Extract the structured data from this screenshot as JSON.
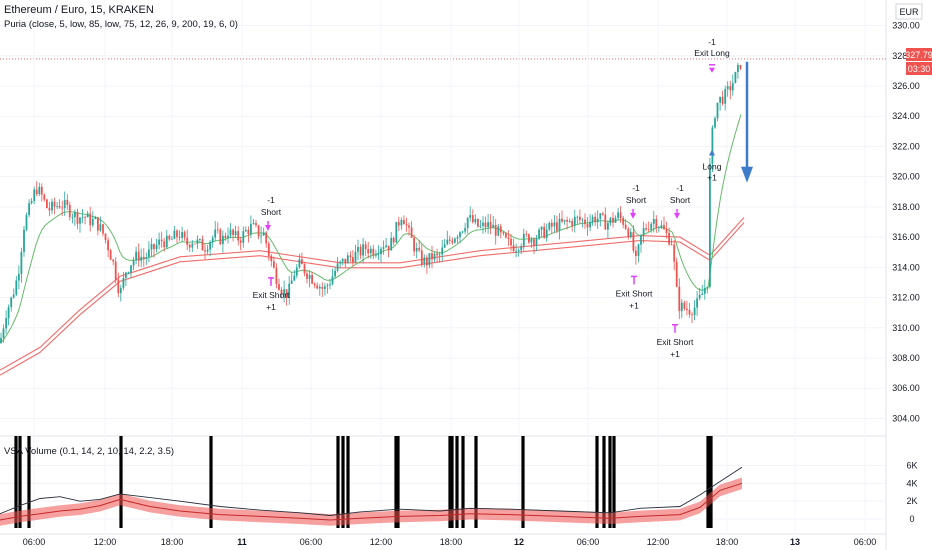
{
  "header": {
    "symbol": "Ethereum / Euro, 15, KRAKEN",
    "indicator": "Puria (close, 5, low, 85, low, 75, 12, 26, 9, 200, 19, 6, 0)"
  },
  "volume_pane": {
    "label": "VSA Volume (0.1, 14, 2, 10, 14, 2.2, 3.5)"
  },
  "price_axis": {
    "currency": "EUR",
    "last_price": "327.79",
    "countdown": "03:30"
  },
  "colors": {
    "up": "#26a69a",
    "down": "#ef5350",
    "ma": "#ef5350",
    "ma_fast": "#66bb6a",
    "signal": "#e040fb",
    "forecast": "#3d7cc9",
    "vol_line": "#2a2e39",
    "vol_band": "#ef5350",
    "climax_bar": "#000000"
  },
  "chart_data": [
    {
      "type": "candlestick",
      "title": "Ethereum / Euro, 15, KRAKEN",
      "ylim": [
        303.5,
        330.3
      ],
      "y_ticks": [
        "330.00",
        "328.00",
        "326.00",
        "324.00",
        "322.00",
        "320.00",
        "318.00",
        "316.00",
        "314.00",
        "312.00",
        "310.00",
        "308.00",
        "306.00",
        "304.00"
      ],
      "x_ticks": [
        "06:00",
        "12:00",
        "18:00",
        "11",
        "06:00",
        "12:00",
        "18:00",
        "12",
        "06:00",
        "12:00",
        "18:00",
        "13",
        "06:00"
      ],
      "close_path": [
        [
          0,
          309
        ],
        [
          6,
          311
        ],
        [
          12,
          312
        ],
        [
          18,
          313.5
        ],
        [
          24,
          316.8
        ],
        [
          30,
          318
        ],
        [
          36,
          319.3
        ],
        [
          42,
          318.7
        ],
        [
          48,
          317.8
        ],
        [
          54,
          318
        ],
        [
          60,
          318.2
        ],
        [
          66,
          318
        ],
        [
          72,
          317.6
        ],
        [
          78,
          317.3
        ],
        [
          84,
          317.4
        ],
        [
          90,
          317.1
        ],
        [
          96,
          317
        ],
        [
          102,
          316.4
        ],
        [
          108,
          315.4
        ],
        [
          114,
          314.1
        ],
        [
          120,
          312.2
        ],
        [
          126,
          313.8
        ],
        [
          132,
          314.4
        ],
        [
          138,
          314.8
        ],
        [
          144,
          314.6
        ],
        [
          150,
          315
        ],
        [
          156,
          315.4
        ],
        [
          162,
          315.8
        ],
        [
          168,
          315.6
        ],
        [
          174,
          316
        ],
        [
          180,
          316.2
        ],
        [
          186,
          315.5
        ],
        [
          192,
          315.8
        ],
        [
          198,
          315.6
        ],
        [
          204,
          315.3
        ],
        [
          210,
          315.8
        ],
        [
          216,
          316.2
        ],
        [
          222,
          315.8
        ],
        [
          228,
          316.4
        ],
        [
          234,
          316
        ],
        [
          240,
          315.9
        ],
        [
          246,
          316.4
        ],
        [
          252,
          316.7
        ],
        [
          258,
          316.3
        ],
        [
          264,
          316.2
        ],
        [
          270,
          314.6
        ],
        [
          276,
          313.4
        ],
        [
          282,
          312.5
        ],
        [
          288,
          312.2
        ],
        [
          294,
          313.6
        ],
        [
          300,
          314.2
        ],
        [
          306,
          313.7
        ],
        [
          312,
          313.3
        ],
        [
          318,
          312.9
        ],
        [
          324,
          312.5
        ],
        [
          330,
          313.1
        ],
        [
          336,
          313.9
        ],
        [
          342,
          314.3
        ],
        [
          348,
          314.6
        ],
        [
          354,
          314.8
        ],
        [
          360,
          315
        ],
        [
          366,
          315.3
        ],
        [
          372,
          315.1
        ],
        [
          378,
          315.3
        ],
        [
          384,
          315.6
        ],
        [
          390,
          315.4
        ],
        [
          396,
          316.5
        ],
        [
          402,
          317.6
        ],
        [
          408,
          316.4
        ],
        [
          414,
          315.4
        ],
        [
          420,
          314.6
        ],
        [
          426,
          314.3
        ],
        [
          432,
          314.7
        ],
        [
          438,
          314.6
        ],
        [
          444,
          315.3
        ],
        [
          450,
          315.8
        ],
        [
          456,
          316.2
        ],
        [
          462,
          316.6
        ],
        [
          468,
          317.3
        ],
        [
          474,
          316.9
        ],
        [
          480,
          316.6
        ],
        [
          486,
          316.8
        ],
        [
          492,
          316.7
        ],
        [
          498,
          316.3
        ],
        [
          504,
          315.8
        ],
        [
          510,
          315.5
        ],
        [
          516,
          315.4
        ],
        [
          522,
          315.8
        ],
        [
          528,
          316
        ],
        [
          534,
          315.9
        ],
        [
          540,
          316.2
        ],
        [
          546,
          316.4
        ],
        [
          552,
          316.7
        ],
        [
          558,
          316.8
        ],
        [
          564,
          316.9
        ],
        [
          570,
          317
        ],
        [
          576,
          317.2
        ],
        [
          582,
          317.1
        ],
        [
          588,
          317
        ],
        [
          594,
          317.3
        ],
        [
          600,
          317.2
        ],
        [
          606,
          316.9
        ],
        [
          612,
          317.1
        ],
        [
          618,
          317.4
        ],
        [
          624,
          317
        ],
        [
          630,
          316.2
        ],
        [
          636,
          314.3
        ],
        [
          642,
          316.3
        ],
        [
          648,
          316.8
        ],
        [
          654,
          317.2
        ],
        [
          660,
          316.8
        ],
        [
          666,
          316.2
        ],
        [
          672,
          315.7
        ],
        [
          678,
          311.5
        ],
        [
          684,
          311.3
        ],
        [
          690,
          311.2
        ],
        [
          696,
          311.4
        ],
        [
          702,
          312.2
        ],
        [
          708,
          313.2
        ],
        [
          710,
          321
        ],
        [
          714,
          324
        ],
        [
          718,
          325
        ],
        [
          722,
          325.2
        ],
        [
          726,
          325.4
        ],
        [
          730,
          325.9
        ],
        [
          734,
          326.4
        ],
        [
          738,
          327
        ],
        [
          742,
          327.79
        ]
      ],
      "ma_slow": [
        [
          0,
          307
        ],
        [
          40,
          308.5
        ],
        [
          80,
          311
        ],
        [
          120,
          313.2
        ],
        [
          180,
          314.5
        ],
        [
          260,
          314.9
        ],
        [
          340,
          314.1
        ],
        [
          400,
          314.1
        ],
        [
          480,
          314.9
        ],
        [
          560,
          315.4
        ],
        [
          640,
          315.9
        ],
        [
          680,
          315.8
        ],
        [
          710,
          314.6
        ],
        [
          744,
          317.1
        ]
      ],
      "forecast_arrow": {
        "from": 327.6,
        "to": 319.6
      },
      "annotations": [
        {
          "x": 268,
          "price": 316.8,
          "dir": "short",
          "lines": [
            "-1",
            "Short"
          ]
        },
        {
          "x": 271,
          "price": 313.3,
          "dir": "exit",
          "lines": [
            "Exit Short",
            "+1"
          ]
        },
        {
          "x": 633,
          "price": 317.6,
          "dir": "short",
          "lines": [
            "-1",
            "Short"
          ]
        },
        {
          "x": 634,
          "price": 313.4,
          "dir": "exit",
          "lines": [
            "Exit Short",
            "+1"
          ]
        },
        {
          "x": 677,
          "price": 317.6,
          "dir": "short",
          "lines": [
            "-1",
            "Short"
          ]
        },
        {
          "x": 675,
          "price": 310.2,
          "dir": "exit",
          "lines": [
            "Exit Short",
            "+1"
          ]
        },
        {
          "x": 712,
          "price": 321.4,
          "dir": "long",
          "lines": [
            "Long",
            "+1"
          ]
        },
        {
          "x": 712,
          "price": 327.8,
          "dir": "exit_long",
          "lines": [
            "-1",
            "Exit Long"
          ]
        }
      ]
    },
    {
      "type": "line",
      "title": "VSA Volume (0.1, 14, 2, 10, 14, 2.2, 3.5)",
      "ylim": [
        -1000,
        7500
      ],
      "y_ticks": [
        "6K",
        "4K",
        "2K",
        "0"
      ],
      "series": [
        {
          "values": [
            [
              0,
              600
            ],
            [
              20,
              1500
            ],
            [
              40,
              2300
            ],
            [
              60,
              2500
            ],
            [
              80,
              2000
            ],
            [
              100,
              2200
            ],
            [
              120,
              2800
            ],
            [
              150,
              2400
            ],
            [
              180,
              2000
            ],
            [
              220,
              1400
            ],
            [
              260,
              1000
            ],
            [
              300,
              700
            ],
            [
              330,
              400
            ],
            [
              360,
              800
            ],
            [
              400,
              1100
            ],
            [
              440,
              900
            ],
            [
              470,
              1200
            ],
            [
              510,
              1100
            ],
            [
              560,
              900
            ],
            [
              610,
              700
            ],
            [
              640,
              1200
            ],
            [
              680,
              1400
            ],
            [
              700,
              2700
            ],
            [
              720,
              4200
            ],
            [
              742,
              5800
            ]
          ]
        },
        {
          "values": [
            [
              0,
              -100
            ],
            [
              20,
              300
            ],
            [
              40,
              600
            ],
            [
              60,
              900
            ],
            [
              80,
              1100
            ],
            [
              100,
              1500
            ],
            [
              120,
              2200
            ],
            [
              150,
              1400
            ],
            [
              180,
              900
            ],
            [
              220,
              500
            ],
            [
              260,
              300
            ],
            [
              300,
              100
            ],
            [
              330,
              -100
            ],
            [
              360,
              100
            ],
            [
              400,
              300
            ],
            [
              440,
              400
            ],
            [
              470,
              600
            ],
            [
              510,
              500
            ],
            [
              560,
              300
            ],
            [
              610,
              100
            ],
            [
              640,
              300
            ],
            [
              680,
              500
            ],
            [
              700,
              1300
            ],
            [
              720,
              3200
            ],
            [
              742,
              4000
            ]
          ]
        }
      ],
      "climax_bar_x": [
        16,
        20,
        29,
        121,
        211,
        338,
        343,
        348,
        396,
        398,
        450,
        452,
        457,
        463,
        476,
        523,
        597,
        604,
        610,
        614,
        708,
        711
      ]
    }
  ]
}
